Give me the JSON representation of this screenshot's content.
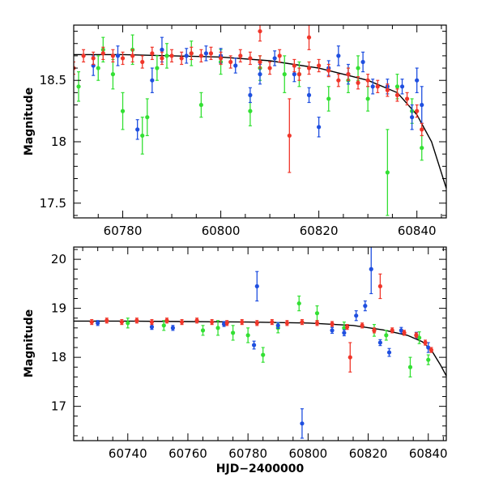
{
  "colors": {
    "green": "#33e033",
    "blue": "#1f4fe0",
    "red": "#f0362a",
    "model": "#000000"
  },
  "chart_data": [
    {
      "type": "scatter",
      "xlabel": "",
      "ylabel": "Magnitude",
      "xlim": [
        60770,
        60846
      ],
      "ylim": [
        18.95,
        17.38
      ],
      "y_inverted": true,
      "x_ticks": [
        60780,
        60800,
        60820,
        60840
      ],
      "x_tick_labels": [
        "60780",
        "60800",
        "60820",
        "60840"
      ],
      "y_ticks": [
        17.5,
        18,
        18.5
      ],
      "y_tick_labels": [
        "17.5",
        "18",
        "18.5"
      ],
      "series": [
        {
          "color_key": "green",
          "points": [
            [
              60771,
              18.45,
              0.12
            ],
            [
              60775,
              18.6,
              0.1
            ],
            [
              60778,
              18.55,
              0.12
            ],
            [
              60780,
              18.25,
              0.15
            ],
            [
              60784,
              18.05,
              0.15
            ],
            [
              60785,
              18.2,
              0.15
            ],
            [
              60789,
              18.7,
              0.1
            ],
            [
              60796,
              18.3,
              0.1
            ],
            [
              60806,
              18.25,
              0.12
            ],
            [
              60813,
              18.55,
              0.15
            ],
            [
              60822,
              18.35,
              0.1
            ],
            [
              60826,
              18.5,
              0.1
            ],
            [
              60830,
              18.35,
              0.1
            ],
            [
              60834,
              17.75,
              0.35
            ],
            [
              60836,
              18.45,
              0.1
            ],
            [
              60841,
              17.95,
              0.1
            ],
            [
              60776,
              18.75,
              0.1
            ],
            [
              60782,
              18.75,
              0.12
            ],
            [
              60787,
              18.6,
              0.1
            ],
            [
              60794,
              18.72,
              0.1
            ],
            [
              60800,
              18.65,
              0.1
            ],
            [
              60808,
              18.6,
              0.1
            ],
            [
              60816,
              18.55,
              0.1
            ],
            [
              60828,
              18.6,
              0.1
            ],
            [
              60839,
              18.25,
              0.1
            ]
          ]
        },
        {
          "color_key": "blue",
          "points": [
            [
              60774,
              18.62,
              0.08
            ],
            [
              60779,
              18.7,
              0.08
            ],
            [
              60783,
              18.1,
              0.08
            ],
            [
              60786,
              18.5,
              0.1
            ],
            [
              60788,
              18.75,
              0.1
            ],
            [
              60793,
              18.7,
              0.06
            ],
            [
              60797,
              18.72,
              0.06
            ],
            [
              60800,
              18.7,
              0.06
            ],
            [
              60803,
              18.62,
              0.06
            ],
            [
              60806,
              18.38,
              0.06
            ],
            [
              60808,
              18.55,
              0.08
            ],
            [
              60811,
              18.68,
              0.06
            ],
            [
              60815,
              18.55,
              0.06
            ],
            [
              60818,
              18.38,
              0.06
            ],
            [
              60820,
              18.12,
              0.08
            ],
            [
              60822,
              18.6,
              0.06
            ],
            [
              60824,
              18.7,
              0.08
            ],
            [
              60826,
              18.55,
              0.08
            ],
            [
              60829,
              18.65,
              0.08
            ],
            [
              60831,
              18.45,
              0.06
            ],
            [
              60834,
              18.45,
              0.06
            ],
            [
              60837,
              18.45,
              0.06
            ],
            [
              60839,
              18.2,
              0.1
            ],
            [
              60840,
              18.5,
              0.1
            ],
            [
              60841,
              18.3,
              0.15
            ]
          ]
        },
        {
          "color_key": "red",
          "points": [
            [
              60770,
              18.6,
              0.05
            ],
            [
              60772,
              18.7,
              0.05
            ],
            [
              60774,
              18.68,
              0.05
            ],
            [
              60776,
              18.72,
              0.05
            ],
            [
              60778,
              18.7,
              0.05
            ],
            [
              60780,
              18.68,
              0.05
            ],
            [
              60782,
              18.7,
              0.05
            ],
            [
              60784,
              18.65,
              0.05
            ],
            [
              60786,
              18.72,
              0.05
            ],
            [
              60788,
              18.68,
              0.05
            ],
            [
              60790,
              18.7,
              0.05
            ],
            [
              60792,
              18.68,
              0.05
            ],
            [
              60794,
              18.72,
              0.05
            ],
            [
              60796,
              18.7,
              0.05
            ],
            [
              60798,
              18.72,
              0.05
            ],
            [
              60800,
              18.68,
              0.05
            ],
            [
              60802,
              18.65,
              0.05
            ],
            [
              60804,
              18.7,
              0.05
            ],
            [
              60806,
              18.68,
              0.05
            ],
            [
              60808,
              18.65,
              0.05
            ],
            [
              60810,
              18.6,
              0.05
            ],
            [
              60812,
              18.7,
              0.05
            ],
            [
              60814,
              18.05,
              0.3
            ],
            [
              60815,
              18.62,
              0.05
            ],
            [
              60816,
              18.55,
              0.05
            ],
            [
              60818,
              18.6,
              0.05
            ],
            [
              60820,
              18.62,
              0.05
            ],
            [
              60822,
              18.58,
              0.05
            ],
            [
              60824,
              18.5,
              0.05
            ],
            [
              60826,
              18.55,
              0.05
            ],
            [
              60828,
              18.48,
              0.05
            ],
            [
              60830,
              18.5,
              0.05
            ],
            [
              60832,
              18.45,
              0.05
            ],
            [
              60834,
              18.42,
              0.05
            ],
            [
              60836,
              18.38,
              0.05
            ],
            [
              60838,
              18.35,
              0.05
            ],
            [
              60840,
              18.25,
              0.05
            ],
            [
              60841,
              18.1,
              0.05
            ],
            [
              60808,
              18.9,
              0.08
            ],
            [
              60818,
              18.85,
              0.1
            ]
          ]
        }
      ],
      "model_curve": [
        [
          60770,
          18.71
        ],
        [
          60780,
          18.71
        ],
        [
          60790,
          18.7
        ],
        [
          60800,
          18.69
        ],
        [
          60810,
          18.66
        ],
        [
          60820,
          18.6
        ],
        [
          60830,
          18.5
        ],
        [
          60836,
          18.4
        ],
        [
          60840,
          18.22
        ],
        [
          60843,
          18.0
        ],
        [
          60846,
          17.62
        ]
      ]
    },
    {
      "type": "scatter",
      "xlabel": "HJD−2400000",
      "ylabel": "Magnitude",
      "xlim": [
        60722,
        60846
      ],
      "ylim": [
        20.25,
        16.3
      ],
      "y_inverted": true,
      "x_ticks": [
        60740,
        60760,
        60780,
        60800,
        60820,
        60840
      ],
      "x_tick_labels": [
        "60740",
        "60760",
        "60780",
        "60800",
        "60820",
        "60840"
      ],
      "y_ticks": [
        17,
        18,
        19,
        20
      ],
      "y_tick_labels": [
        "17",
        "18",
        "19",
        "20"
      ],
      "series": [
        {
          "color_key": "green",
          "points": [
            [
              60740,
              18.7,
              0.1
            ],
            [
              60752,
              18.65,
              0.1
            ],
            [
              60765,
              18.55,
              0.1
            ],
            [
              60770,
              18.6,
              0.15
            ],
            [
              60775,
              18.5,
              0.15
            ],
            [
              60780,
              18.45,
              0.15
            ],
            [
              60785,
              18.05,
              0.15
            ],
            [
              60790,
              18.6,
              0.1
            ],
            [
              60797,
              19.1,
              0.15
            ],
            [
              60803,
              18.9,
              0.15
            ],
            [
              60812,
              18.6,
              0.12
            ],
            [
              60822,
              18.55,
              0.12
            ],
            [
              60826,
              18.45,
              0.1
            ],
            [
              60834,
              17.8,
              0.2
            ],
            [
              60837,
              18.4,
              0.12
            ],
            [
              60840,
              17.95,
              0.1
            ]
          ]
        },
        {
          "color_key": "blue",
          "points": [
            [
              60730,
              18.7,
              0.05
            ],
            [
              60748,
              18.62,
              0.05
            ],
            [
              60755,
              18.6,
              0.05
            ],
            [
              60772,
              18.68,
              0.05
            ],
            [
              60782,
              18.25,
              0.08
            ],
            [
              60783,
              19.45,
              0.3
            ],
            [
              60790,
              18.65,
              0.06
            ],
            [
              60798,
              16.65,
              0.3
            ],
            [
              60808,
              18.55,
              0.06
            ],
            [
              60812,
              18.5,
              0.06
            ],
            [
              60816,
              18.85,
              0.1
            ],
            [
              60819,
              19.05,
              0.1
            ],
            [
              60821,
              19.8,
              0.5
            ],
            [
              60824,
              18.3,
              0.06
            ],
            [
              60827,
              18.1,
              0.08
            ],
            [
              60831,
              18.55,
              0.06
            ],
            [
              60836,
              18.45,
              0.06
            ],
            [
              60840,
              18.2,
              0.1
            ]
          ]
        },
        {
          "color_key": "red",
          "points": [
            [
              60728,
              18.72,
              0.05
            ],
            [
              60733,
              18.75,
              0.05
            ],
            [
              60738,
              18.72,
              0.05
            ],
            [
              60743,
              18.75,
              0.05
            ],
            [
              60748,
              18.72,
              0.05
            ],
            [
              60753,
              18.75,
              0.05
            ],
            [
              60758,
              18.72,
              0.05
            ],
            [
              60763,
              18.75,
              0.05
            ],
            [
              60768,
              18.72,
              0.05
            ],
            [
              60773,
              18.7,
              0.05
            ],
            [
              60778,
              18.72,
              0.05
            ],
            [
              60783,
              18.7,
              0.05
            ],
            [
              60788,
              18.72,
              0.05
            ],
            [
              60793,
              18.7,
              0.05
            ],
            [
              60798,
              18.72,
              0.05
            ],
            [
              60803,
              18.7,
              0.05
            ],
            [
              60808,
              18.68,
              0.05
            ],
            [
              60813,
              18.62,
              0.05
            ],
            [
              60814,
              18.0,
              0.3
            ],
            [
              60818,
              18.65,
              0.05
            ],
            [
              60822,
              18.55,
              0.05
            ],
            [
              60824,
              19.45,
              0.25
            ],
            [
              60828,
              18.55,
              0.05
            ],
            [
              60832,
              18.5,
              0.05
            ],
            [
              60836,
              18.45,
              0.05
            ],
            [
              60839,
              18.3,
              0.05
            ],
            [
              60841,
              18.15,
              0.05
            ]
          ]
        }
      ],
      "model_curve": [
        [
          60722,
          18.74
        ],
        [
          60740,
          18.74
        ],
        [
          60760,
          18.73
        ],
        [
          60780,
          18.72
        ],
        [
          60800,
          18.7
        ],
        [
          60815,
          18.65
        ],
        [
          60825,
          18.56
        ],
        [
          60833,
          18.45
        ],
        [
          60838,
          18.32
        ],
        [
          60841,
          18.15
        ],
        [
          60844,
          17.85
        ],
        [
          60846,
          17.62
        ]
      ]
    }
  ]
}
